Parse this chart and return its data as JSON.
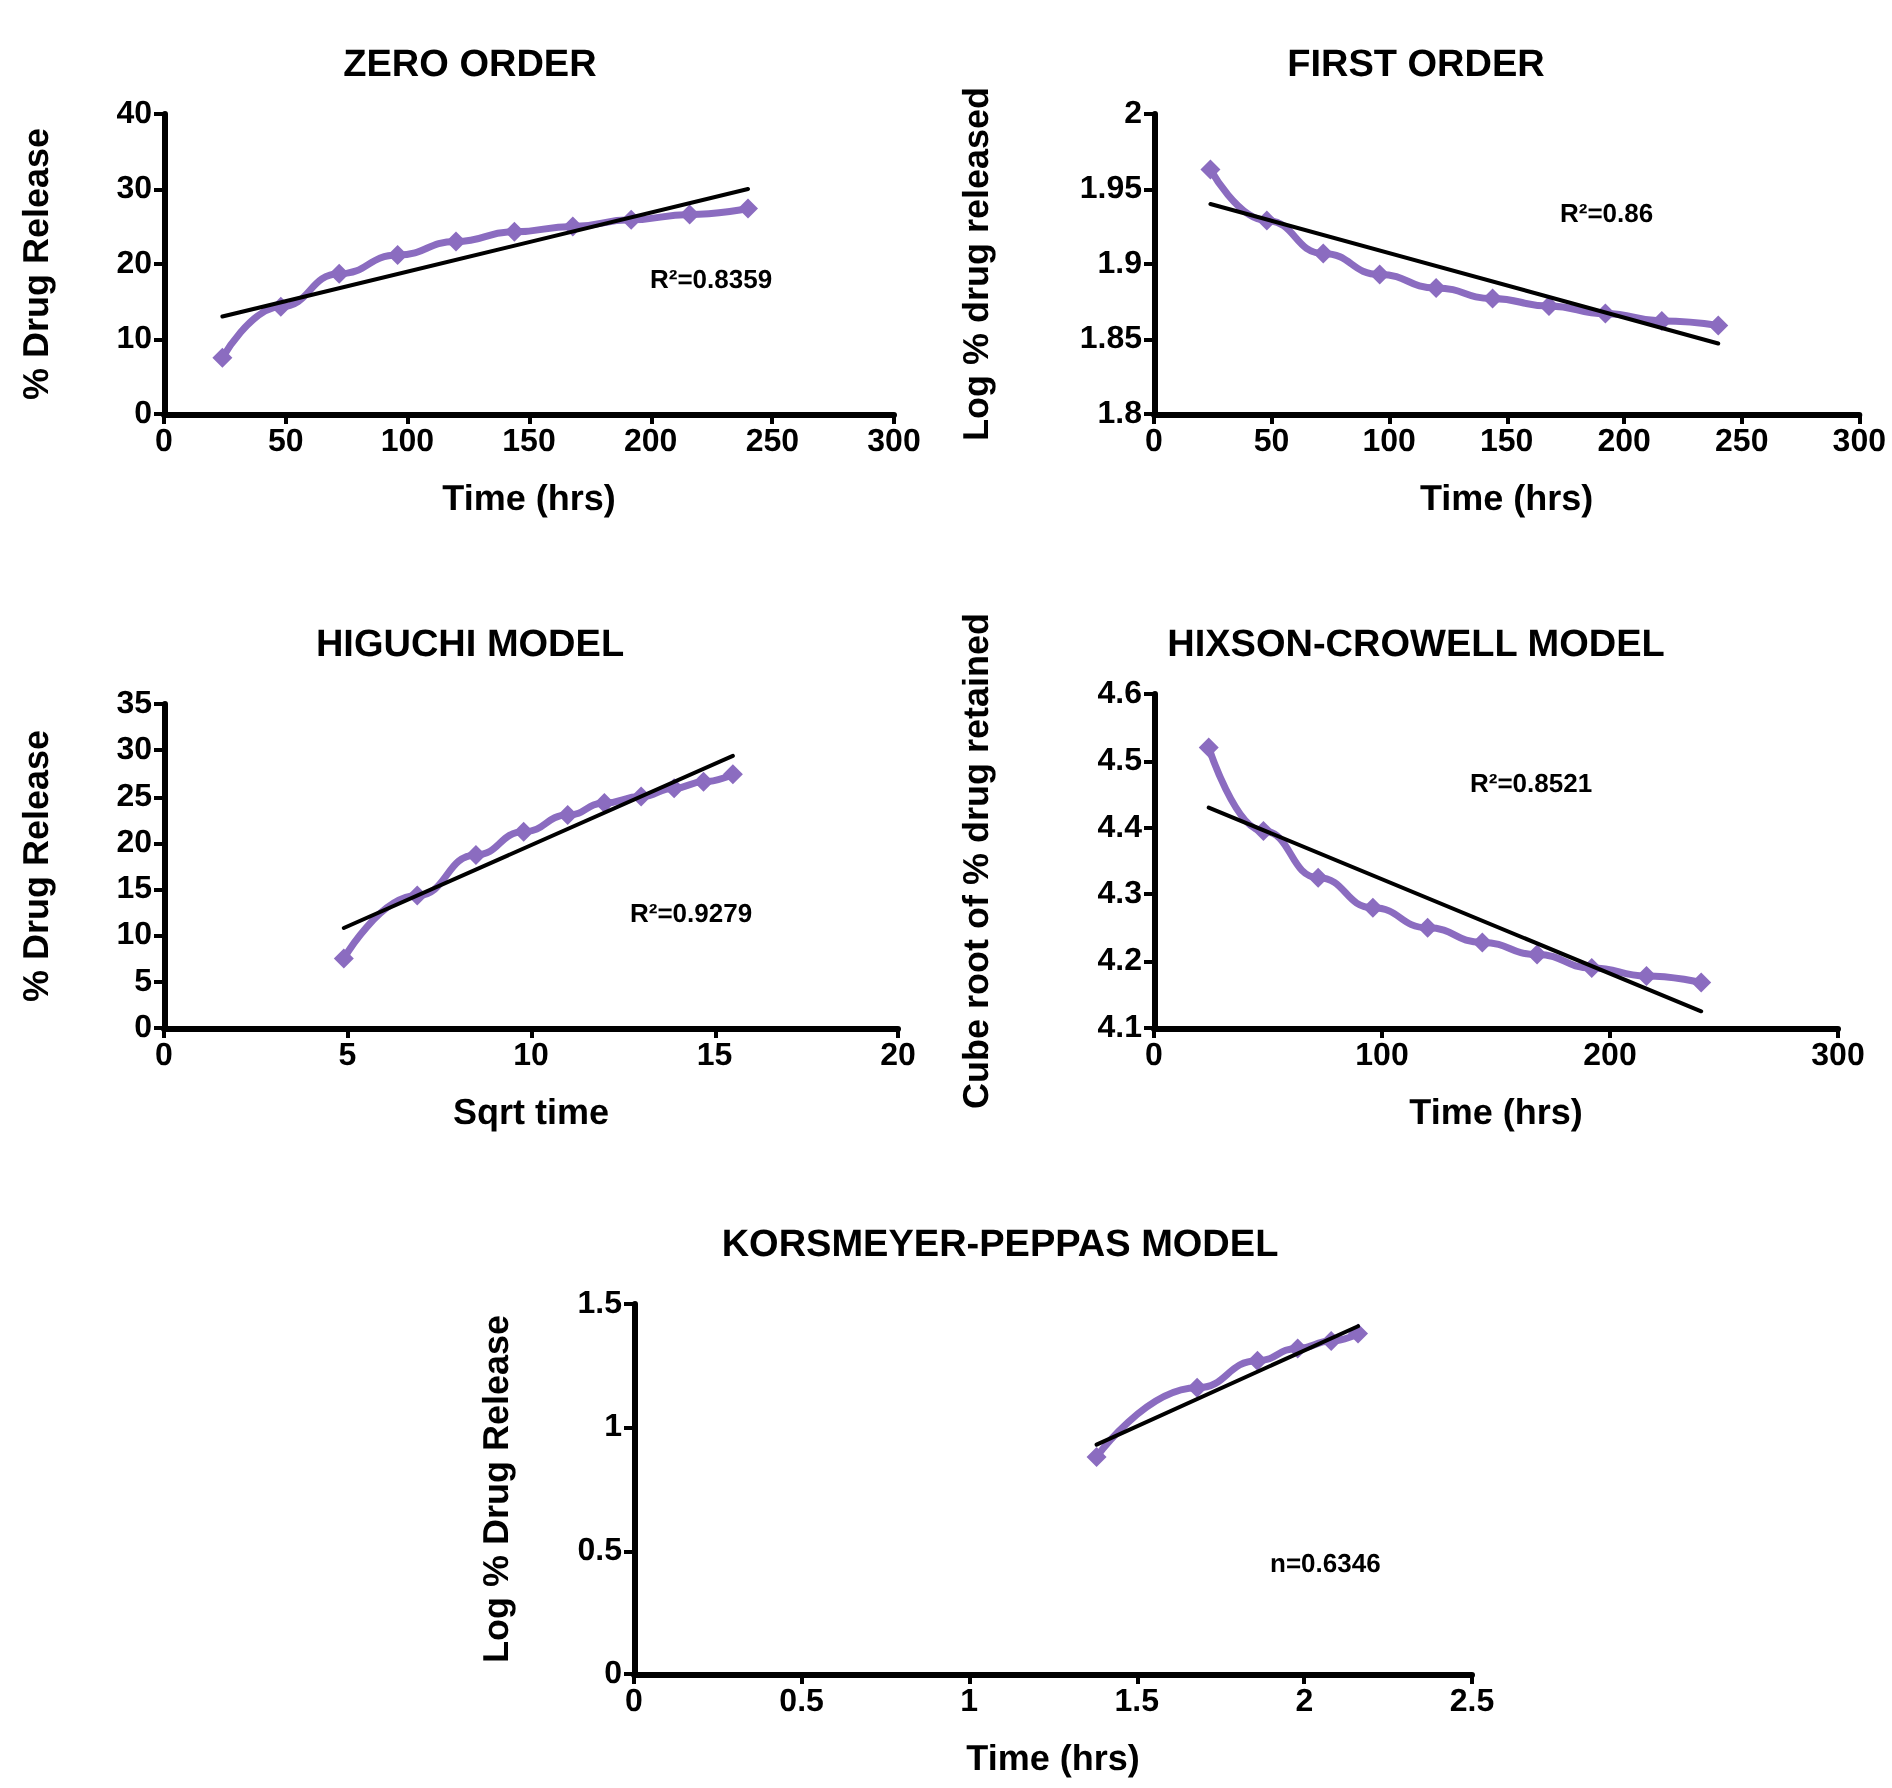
{
  "chart_data": [
    {
      "type": "line",
      "title": "ZERO ORDER",
      "xlabel": "Time (hrs)",
      "ylabel": "% Drug Release",
      "xlim": [
        0,
        300
      ],
      "xticks": [
        0,
        50,
        100,
        150,
        200,
        250,
        300
      ],
      "ylim": [
        0,
        40
      ],
      "yticks": [
        0,
        10,
        20,
        30,
        40
      ],
      "marker": "diamond",
      "annotations": [
        "R²=0.8359"
      ],
      "series": [
        {
          "color": "#8b6cc0",
          "x": [
            24,
            48,
            72,
            96,
            120,
            144,
            168,
            192,
            216,
            240
          ],
          "values": [
            7.5,
            14.3,
            18.7,
            21.2,
            23,
            24.3,
            25,
            25.9,
            26.6,
            27.4
          ]
        },
        {
          "color": "#000000",
          "marker": "none",
          "x": [
            24,
            240
          ],
          "values": [
            13,
            30
          ]
        }
      ]
    },
    {
      "type": "line",
      "title": "FIRST ORDER",
      "xlabel": "Time (hrs)",
      "ylabel": "Log % drug released",
      "xlim": [
        0,
        300
      ],
      "xticks": [
        0,
        50,
        100,
        150,
        200,
        250,
        300
      ],
      "ylim": [
        1.8,
        2
      ],
      "yticks": [
        1.8,
        1.85,
        1.9,
        1.95,
        2
      ],
      "marker": "diamond",
      "annotations": [
        "R²=0.86"
      ],
      "series": [
        {
          "color": "#8b6cc0",
          "x": [
            24,
            48,
            72,
            96,
            120,
            144,
            168,
            192,
            216,
            240
          ],
          "values": [
            1.963,
            1.929,
            1.907,
            1.893,
            1.884,
            1.877,
            1.872,
            1.867,
            1.862,
            1.859
          ]
        },
        {
          "color": "#000000",
          "marker": "none",
          "x": [
            24,
            240
          ],
          "values": [
            1.94,
            1.847
          ]
        }
      ]
    },
    {
      "type": "line",
      "title": "HIGUCHI MODEL",
      "xlabel": "Sqrt time",
      "ylabel": "% Drug Release",
      "xlim": [
        0,
        20
      ],
      "xticks": [
        0,
        5,
        10,
        15,
        20
      ],
      "ylim": [
        0,
        35
      ],
      "yticks": [
        0,
        5,
        10,
        15,
        20,
        25,
        30,
        35
      ],
      "marker": "diamond",
      "annotations": [
        "R²=0.9279"
      ],
      "series": [
        {
          "color": "#8b6cc0",
          "x": [
            4.9,
            6.9,
            8.5,
            9.8,
            11,
            12,
            13,
            13.9,
            14.7,
            15.5
          ],
          "values": [
            7.5,
            14.3,
            18.7,
            21.2,
            23,
            24.3,
            25,
            25.9,
            26.6,
            27.4
          ]
        },
        {
          "color": "#000000",
          "marker": "none",
          "x": [
            4.9,
            15.5
          ],
          "values": [
            10.8,
            29.4
          ]
        }
      ]
    },
    {
      "type": "line",
      "title": "HIXSON-CROWELL MODEL",
      "xlabel": "Time (hrs)",
      "ylabel": "Cube root of % drug retained",
      "xlim": [
        0,
        300
      ],
      "xticks": [
        0,
        100,
        200,
        300
      ],
      "ylim": [
        4.1,
        4.6
      ],
      "yticks": [
        4.1,
        4.2,
        4.3,
        4.4,
        4.5,
        4.6
      ],
      "marker": "diamond",
      "annotations": [
        "R²=0.8521"
      ],
      "series": [
        {
          "color": "#8b6cc0",
          "x": [
            24,
            48,
            72,
            96,
            120,
            144,
            168,
            192,
            216,
            240
          ],
          "values": [
            4.52,
            4.395,
            4.325,
            4.28,
            4.25,
            4.228,
            4.21,
            4.19,
            4.178,
            4.168
          ]
        },
        {
          "color": "#000000",
          "marker": "none",
          "x": [
            24,
            240
          ],
          "values": [
            4.43,
            4.125
          ]
        }
      ]
    },
    {
      "type": "line",
      "title": "KORSMEYER-PEPPAS MODEL",
      "xlabel": "Time (hrs)",
      "ylabel": "Log % Drug Release",
      "xlim": [
        0,
        2.5
      ],
      "xticks": [
        0,
        0.5,
        1,
        1.5,
        2,
        2.5
      ],
      "ylim": [
        0,
        1.5
      ],
      "yticks": [
        0,
        0.5,
        1,
        1.5
      ],
      "marker": "diamond",
      "annotations": [
        "n=0.6346"
      ],
      "series": [
        {
          "color": "#8b6cc0",
          "x": [
            1.38,
            1.68,
            1.86,
            1.98,
            2.08,
            2.16
          ],
          "values": [
            0.88,
            1.16,
            1.27,
            1.32,
            1.35,
            1.38
          ]
        },
        {
          "color": "#000000",
          "marker": "none",
          "x": [
            1.38,
            2.16
          ],
          "values": [
            0.93,
            1.41
          ]
        }
      ]
    }
  ]
}
